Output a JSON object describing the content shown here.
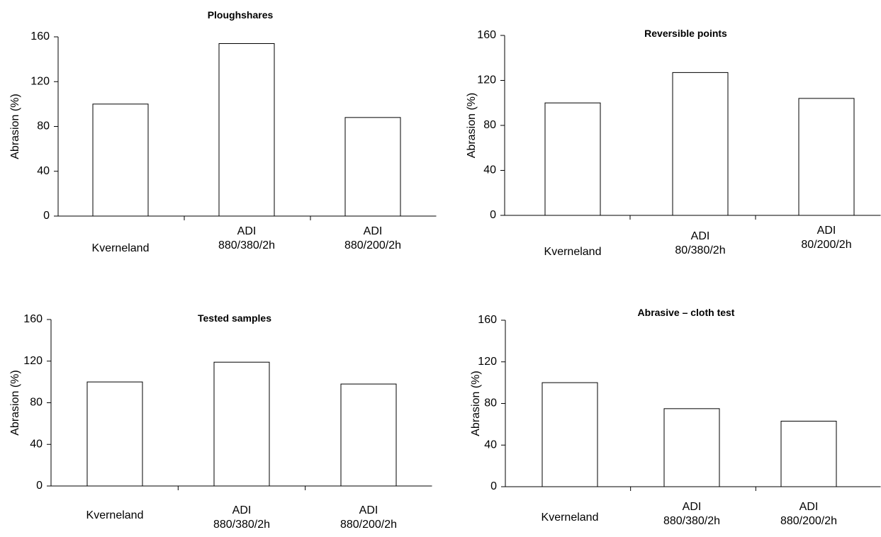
{
  "chart_data": [
    {
      "type": "bar",
      "title": "Ploughshares",
      "ylabel": "Abrasion (%)",
      "xlabel": "",
      "ylim": [
        0,
        160
      ],
      "yticks": [
        "0",
        "40",
        "80",
        "120",
        "160"
      ],
      "categories": [
        [
          "Kverneland"
        ],
        [
          "ADI",
          "880/380/2h"
        ],
        [
          "ADI",
          "880/200/2h"
        ]
      ],
      "values": [
        100,
        154,
        88
      ],
      "grid": false
    },
    {
      "type": "bar",
      "title": "Reversible points",
      "ylabel": "Abrasion (%)",
      "xlabel": "",
      "ylim": [
        0,
        160
      ],
      "yticks": [
        "0",
        "40",
        "80",
        "120",
        "160"
      ],
      "categories": [
        [
          "Kverneland"
        ],
        [
          "ADI",
          "80/380/2h"
        ],
        [
          "ADI",
          "80/200/2h"
        ]
      ],
      "values": [
        100,
        127,
        104
      ],
      "grid": false
    },
    {
      "type": "bar",
      "title": "Tested samples",
      "ylabel": "Abrasion (%)",
      "xlabel": "",
      "ylim": [
        0,
        160
      ],
      "yticks": [
        "0",
        "40",
        "80",
        "120",
        "160"
      ],
      "categories": [
        [
          "Kverneland"
        ],
        [
          "ADI",
          "880/380/2h"
        ],
        [
          "ADI",
          "880/200/2h"
        ]
      ],
      "values": [
        100,
        119,
        98
      ],
      "grid": false
    },
    {
      "type": "bar",
      "title": "Abrasive – cloth test",
      "ylabel": "Abrasion (%)",
      "xlabel": "",
      "ylim": [
        0,
        160
      ],
      "yticks": [
        "0",
        "40",
        "80",
        "120",
        "160"
      ],
      "categories": [
        [
          "Kverneland"
        ],
        [
          "ADI",
          "880/380/2h"
        ],
        [
          "ADI",
          "880/200/2h"
        ]
      ],
      "values": [
        100,
        75,
        63
      ],
      "grid": false
    }
  ]
}
